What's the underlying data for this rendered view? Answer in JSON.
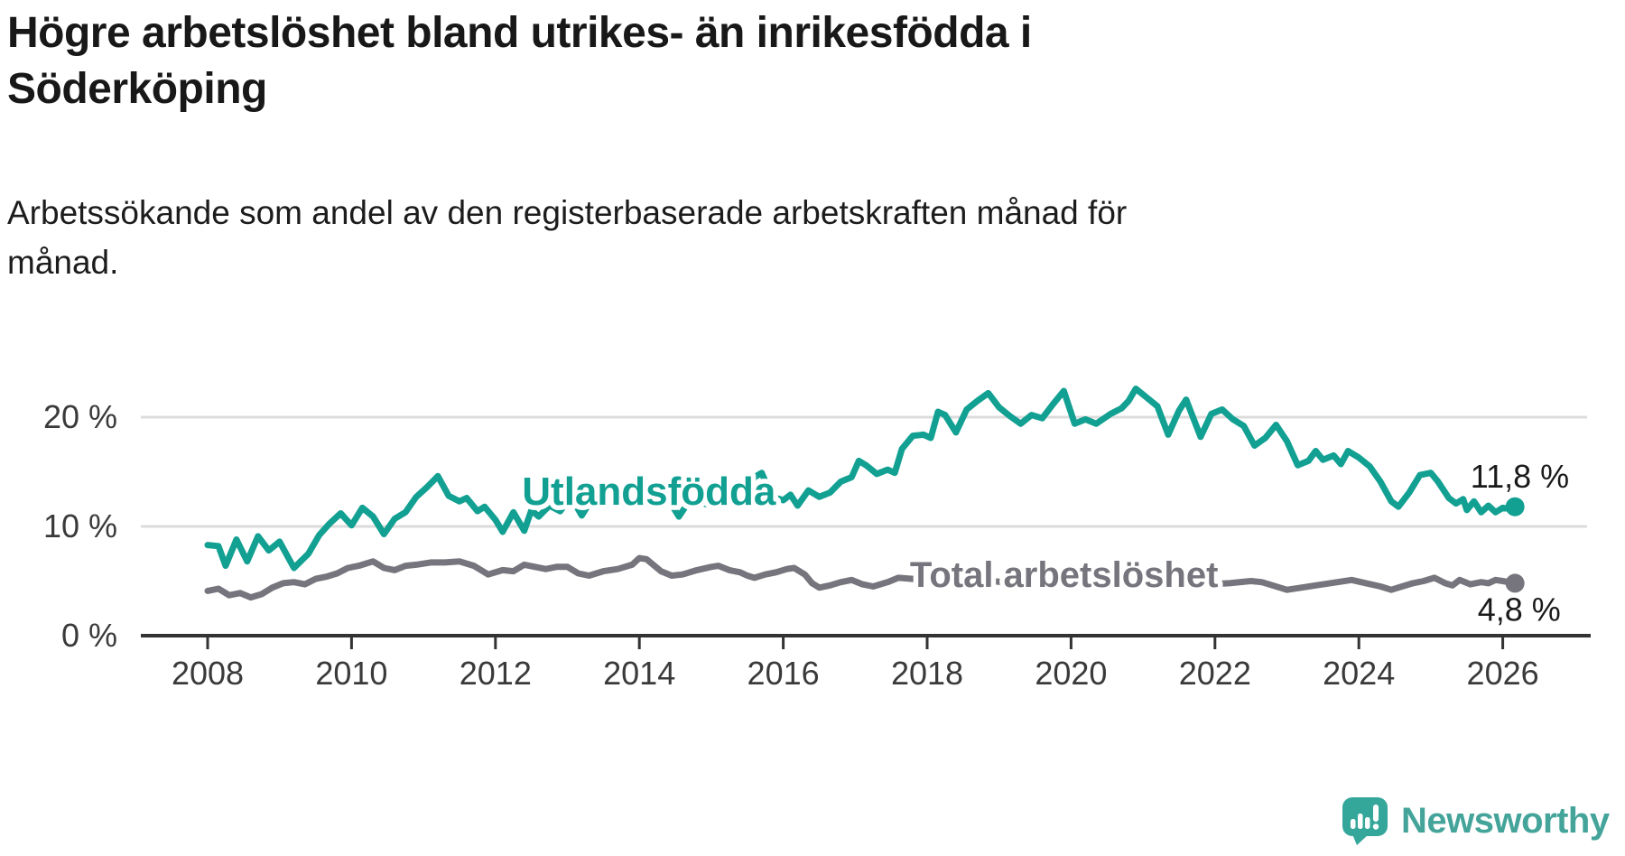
{
  "header": {
    "title": "Högre arbetslöshet bland utrikes- än inrikesfödda i Söderköping",
    "title_lines": [
      "Högre arbetslöshet bland utrikes- än inrikesfödda i",
      "Söderköping"
    ],
    "subtitle": "Arbetssökande som andel av den registerbaserade arbetskraften månad för månad.",
    "subtitle_lines": [
      "Arbetssökande som andel av den registerbaserade arbetskraften månad för",
      "månad."
    ]
  },
  "colors": {
    "accent_teal": "#12a092",
    "series_gray": "#76757d",
    "grid": "#dcdcdc",
    "axis": "#333333",
    "text": "#1a1a1a",
    "logo_teal": "#44a49a"
  },
  "chart_data": {
    "type": "line",
    "unit": "%",
    "grid": true,
    "x_ticks": [
      2008,
      2010,
      2012,
      2014,
      2016,
      2018,
      2020,
      2022,
      2024,
      2026
    ],
    "y_ticks": [
      {
        "value": 0,
        "label": "0 %"
      },
      {
        "value": 10,
        "label": "10 %"
      },
      {
        "value": 20,
        "label": "20 %"
      }
    ],
    "xlim": [
      2007.1,
      2027.2
    ],
    "ylim": [
      0,
      24
    ],
    "series": [
      {
        "id": "utlandsfodda",
        "name": "Utlandsfödda",
        "color": "#12a092",
        "end_label": "11,8 %",
        "end_value": 11.8,
        "label_pos": [
          2012.37,
          12.0
        ],
        "value_label_pos": [
          2025.55,
          13.55
        ],
        "points": [
          [
            2008.0,
            8.3
          ],
          [
            2008.15,
            8.2
          ],
          [
            2008.25,
            6.4
          ],
          [
            2008.4,
            8.8
          ],
          [
            2008.55,
            6.8
          ],
          [
            2008.7,
            9.1
          ],
          [
            2008.85,
            7.8
          ],
          [
            2009.0,
            8.6
          ],
          [
            2009.2,
            6.2
          ],
          [
            2009.4,
            7.5
          ],
          [
            2009.55,
            9.2
          ],
          [
            2009.7,
            10.3
          ],
          [
            2009.85,
            11.2
          ],
          [
            2010.0,
            10.1
          ],
          [
            2010.15,
            11.7
          ],
          [
            2010.3,
            10.9
          ],
          [
            2010.45,
            9.3
          ],
          [
            2010.6,
            10.7
          ],
          [
            2010.75,
            11.3
          ],
          [
            2010.9,
            12.7
          ],
          [
            2011.05,
            13.6
          ],
          [
            2011.2,
            14.6
          ],
          [
            2011.35,
            12.8
          ],
          [
            2011.5,
            12.3
          ],
          [
            2011.6,
            12.6
          ],
          [
            2011.75,
            11.4
          ],
          [
            2011.85,
            11.8
          ],
          [
            2012.0,
            10.6
          ],
          [
            2012.1,
            9.5
          ],
          [
            2012.25,
            11.3
          ],
          [
            2012.4,
            9.6
          ],
          [
            2012.5,
            11.5
          ],
          [
            2012.6,
            10.9
          ],
          [
            2012.75,
            11.9
          ],
          [
            2012.9,
            11.4
          ],
          [
            2013.05,
            12.7
          ],
          [
            2013.2,
            11.0
          ],
          [
            2013.35,
            12.6
          ],
          [
            2013.5,
            13.3
          ],
          [
            2013.65,
            12.4
          ],
          [
            2013.8,
            13.4
          ],
          [
            2013.95,
            13.8
          ],
          [
            2014.1,
            12.8
          ],
          [
            2014.25,
            13.6
          ],
          [
            2014.4,
            12.5
          ],
          [
            2014.55,
            10.9
          ],
          [
            2014.7,
            12.4
          ],
          [
            2014.85,
            12.2
          ],
          [
            2015.0,
            11.9
          ],
          [
            2015.15,
            12.5
          ],
          [
            2015.3,
            12.1
          ],
          [
            2015.45,
            13.0
          ],
          [
            2015.6,
            14.5
          ],
          [
            2015.7,
            14.9
          ],
          [
            2015.8,
            13.4
          ],
          [
            2015.9,
            12.6
          ],
          [
            2016.0,
            12.4
          ],
          [
            2016.1,
            12.9
          ],
          [
            2016.2,
            11.9
          ],
          [
            2016.35,
            13.3
          ],
          [
            2016.5,
            12.7
          ],
          [
            2016.65,
            13.1
          ],
          [
            2016.8,
            14.1
          ],
          [
            2016.95,
            14.5
          ],
          [
            2017.05,
            16.0
          ],
          [
            2017.15,
            15.6
          ],
          [
            2017.3,
            14.8
          ],
          [
            2017.45,
            15.2
          ],
          [
            2017.55,
            14.9
          ],
          [
            2017.65,
            17.1
          ],
          [
            2017.8,
            18.3
          ],
          [
            2017.95,
            18.4
          ],
          [
            2018.05,
            18.1
          ],
          [
            2018.15,
            20.5
          ],
          [
            2018.25,
            20.2
          ],
          [
            2018.4,
            18.6
          ],
          [
            2018.55,
            20.7
          ],
          [
            2018.7,
            21.5
          ],
          [
            2018.85,
            22.2
          ],
          [
            2019.0,
            20.9
          ],
          [
            2019.15,
            20.1
          ],
          [
            2019.3,
            19.4
          ],
          [
            2019.45,
            20.2
          ],
          [
            2019.6,
            19.9
          ],
          [
            2019.75,
            21.2
          ],
          [
            2019.9,
            22.4
          ],
          [
            2020.05,
            19.4
          ],
          [
            2020.2,
            19.8
          ],
          [
            2020.35,
            19.4
          ],
          [
            2020.55,
            20.3
          ],
          [
            2020.7,
            20.8
          ],
          [
            2020.8,
            21.5
          ],
          [
            2020.9,
            22.6
          ],
          [
            2021.05,
            21.8
          ],
          [
            2021.2,
            21.0
          ],
          [
            2021.35,
            18.4
          ],
          [
            2021.5,
            20.6
          ],
          [
            2021.6,
            21.6
          ],
          [
            2021.8,
            18.2
          ],
          [
            2021.95,
            20.3
          ],
          [
            2022.1,
            20.7
          ],
          [
            2022.25,
            19.8
          ],
          [
            2022.4,
            19.2
          ],
          [
            2022.55,
            17.4
          ],
          [
            2022.7,
            18.1
          ],
          [
            2022.85,
            19.3
          ],
          [
            2023.0,
            17.8
          ],
          [
            2023.15,
            15.6
          ],
          [
            2023.3,
            16.0
          ],
          [
            2023.4,
            16.9
          ],
          [
            2023.5,
            16.1
          ],
          [
            2023.65,
            16.5
          ],
          [
            2023.75,
            15.7
          ],
          [
            2023.85,
            16.9
          ],
          [
            2024.0,
            16.3
          ],
          [
            2024.15,
            15.5
          ],
          [
            2024.3,
            14.1
          ],
          [
            2024.45,
            12.3
          ],
          [
            2024.55,
            11.8
          ],
          [
            2024.7,
            13.1
          ],
          [
            2024.85,
            14.7
          ],
          [
            2025.0,
            14.9
          ],
          [
            2025.1,
            14.1
          ],
          [
            2025.25,
            12.6
          ],
          [
            2025.35,
            12.1
          ],
          [
            2025.45,
            12.5
          ],
          [
            2025.5,
            11.5
          ],
          [
            2025.6,
            12.3
          ],
          [
            2025.7,
            11.3
          ],
          [
            2025.8,
            11.9
          ],
          [
            2025.9,
            11.3
          ],
          [
            2026.0,
            11.7
          ],
          [
            2026.1,
            11.6
          ],
          [
            2026.17,
            11.8
          ]
        ]
      },
      {
        "id": "total-arbetsloshet",
        "name": "Total arbetslöshet",
        "color": "#76757d",
        "end_label": "4,8 %",
        "end_value": 4.8,
        "label_pos": [
          2017.76,
          4.45
        ],
        "value_label_pos": [
          2025.65,
          1.35
        ],
        "points": [
          [
            2008.0,
            4.1
          ],
          [
            2008.15,
            4.3
          ],
          [
            2008.3,
            3.7
          ],
          [
            2008.45,
            3.9
          ],
          [
            2008.6,
            3.5
          ],
          [
            2008.75,
            3.8
          ],
          [
            2008.9,
            4.4
          ],
          [
            2009.05,
            4.8
          ],
          [
            2009.2,
            4.9
          ],
          [
            2009.35,
            4.7
          ],
          [
            2009.5,
            5.2
          ],
          [
            2009.65,
            5.4
          ],
          [
            2009.8,
            5.7
          ],
          [
            2009.95,
            6.2
          ],
          [
            2010.1,
            6.4
          ],
          [
            2010.3,
            6.8
          ],
          [
            2010.45,
            6.2
          ],
          [
            2010.6,
            6.0
          ],
          [
            2010.75,
            6.4
          ],
          [
            2010.9,
            6.5
          ],
          [
            2011.1,
            6.7
          ],
          [
            2011.3,
            6.7
          ],
          [
            2011.5,
            6.8
          ],
          [
            2011.7,
            6.4
          ],
          [
            2011.9,
            5.6
          ],
          [
            2012.1,
            6.0
          ],
          [
            2012.25,
            5.9
          ],
          [
            2012.4,
            6.5
          ],
          [
            2012.55,
            6.3
          ],
          [
            2012.7,
            6.1
          ],
          [
            2012.85,
            6.3
          ],
          [
            2013.0,
            6.3
          ],
          [
            2013.15,
            5.7
          ],
          [
            2013.3,
            5.5
          ],
          [
            2013.5,
            5.9
          ],
          [
            2013.7,
            6.1
          ],
          [
            2013.9,
            6.5
          ],
          [
            2014.0,
            7.1
          ],
          [
            2014.1,
            7.0
          ],
          [
            2014.3,
            5.9
          ],
          [
            2014.45,
            5.5
          ],
          [
            2014.6,
            5.6
          ],
          [
            2014.8,
            6.0
          ],
          [
            2015.0,
            6.3
          ],
          [
            2015.1,
            6.4
          ],
          [
            2015.25,
            6.0
          ],
          [
            2015.4,
            5.8
          ],
          [
            2015.5,
            5.5
          ],
          [
            2015.6,
            5.3
          ],
          [
            2015.75,
            5.6
          ],
          [
            2015.9,
            5.8
          ],
          [
            2016.05,
            6.1
          ],
          [
            2016.15,
            6.2
          ],
          [
            2016.3,
            5.6
          ],
          [
            2016.4,
            4.8
          ],
          [
            2016.5,
            4.4
          ],
          [
            2016.65,
            4.6
          ],
          [
            2016.8,
            4.9
          ],
          [
            2016.95,
            5.1
          ],
          [
            2017.1,
            4.7
          ],
          [
            2017.25,
            4.5
          ],
          [
            2017.45,
            4.9
          ],
          [
            2017.6,
            5.3
          ],
          [
            2017.8,
            5.2
          ],
          [
            2018.0,
            4.9
          ],
          [
            2018.3,
            4.6
          ],
          [
            2018.6,
            4.8
          ],
          [
            2018.9,
            5.0
          ],
          [
            2019.2,
            4.8
          ],
          [
            2019.5,
            4.7
          ],
          [
            2019.8,
            4.9
          ],
          [
            2020.1,
            5.3
          ],
          [
            2020.4,
            5.8
          ],
          [
            2020.7,
            5.6
          ],
          [
            2021.0,
            5.4
          ],
          [
            2021.3,
            5.1
          ],
          [
            2021.6,
            4.9
          ],
          [
            2021.9,
            4.7
          ],
          [
            2022.2,
            4.8
          ],
          [
            2022.5,
            5.0
          ],
          [
            2022.65,
            4.9
          ],
          [
            2022.8,
            4.6
          ],
          [
            2023.0,
            4.2
          ],
          [
            2023.2,
            4.4
          ],
          [
            2023.4,
            4.6
          ],
          [
            2023.6,
            4.8
          ],
          [
            2023.9,
            5.1
          ],
          [
            2024.1,
            4.8
          ],
          [
            2024.3,
            4.5
          ],
          [
            2024.45,
            4.2
          ],
          [
            2024.6,
            4.5
          ],
          [
            2024.75,
            4.8
          ],
          [
            2024.9,
            5.0
          ],
          [
            2025.05,
            5.3
          ],
          [
            2025.2,
            4.8
          ],
          [
            2025.3,
            4.6
          ],
          [
            2025.4,
            5.1
          ],
          [
            2025.55,
            4.7
          ],
          [
            2025.7,
            4.9
          ],
          [
            2025.8,
            4.8
          ],
          [
            2025.9,
            5.1
          ],
          [
            2026.0,
            5.0
          ],
          [
            2026.17,
            4.8
          ]
        ]
      }
    ]
  },
  "footer": {
    "brand": "Newsworthy"
  }
}
